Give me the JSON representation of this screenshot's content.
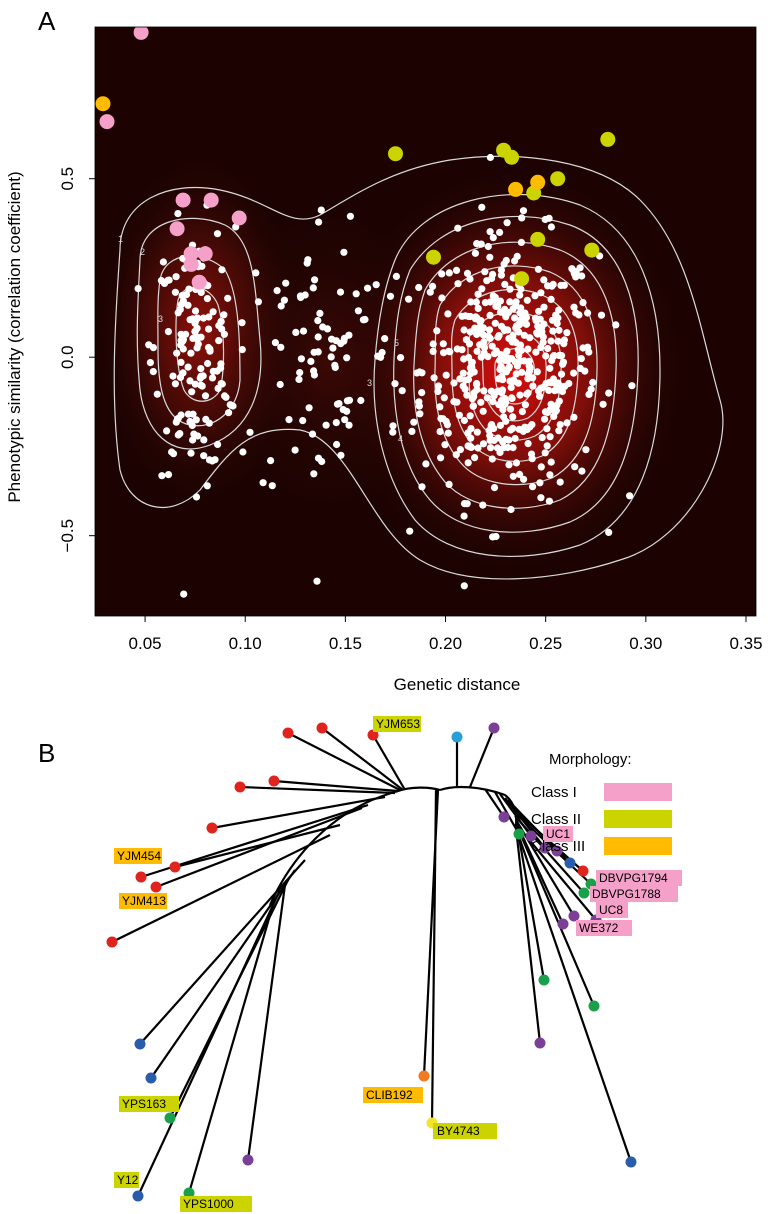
{
  "panels": {
    "a": "A",
    "b": "B"
  },
  "chart_data": [
    {
      "type": "scatter",
      "title": "",
      "xlabel": "Genetic distance",
      "ylabel": "Phenotypic similarity (correlation coefficient)",
      "xlim": [
        0.025,
        0.355
      ],
      "ylim": [
        -0.725,
        0.925
      ],
      "x_ticks": [
        0.05,
        0.1,
        0.15,
        0.2,
        0.25,
        0.3,
        0.35
      ],
      "x_tick_labels": [
        "0.05",
        "0.10",
        "0.15",
        "0.20",
        "0.25",
        "0.30",
        "0.35"
      ],
      "y_ticks": [
        -0.5,
        0.0,
        0.5
      ],
      "y_tick_labels": [
        "−0.5",
        "0.0",
        "0.5"
      ],
      "background": "2D density heatmap (dark to red) with white contour lines",
      "contour_labels": [
        "1",
        "2",
        "3",
        "3",
        "4",
        "5"
      ],
      "colors": {
        "points": "#ffffff",
        "class_I": "#f4a0c8",
        "class_II": "#ccd400",
        "class_III": "#ffbb00",
        "contours": "#d9d9d9"
      },
      "density_centers": [
        {
          "x": 0.232,
          "y": -0.03,
          "weight": 1.0
        },
        {
          "x": 0.075,
          "y": 0.05,
          "weight": 0.55
        },
        {
          "x": 0.14,
          "y": 0.0,
          "weight": 0.12
        }
      ],
      "series": [
        {
          "name": "Class I",
          "color": "#f4a0c8",
          "points": [
            [
              0.048,
              0.91
            ],
            [
              0.031,
              0.66
            ],
            [
              0.069,
              0.44
            ],
            [
              0.083,
              0.44
            ],
            [
              0.097,
              0.39
            ],
            [
              0.066,
              0.36
            ],
            [
              0.073,
              0.29
            ],
            [
              0.08,
              0.29
            ],
            [
              0.073,
              0.26
            ],
            [
              0.077,
              0.21
            ]
          ]
        },
        {
          "name": "Class II",
          "color": "#ccd400",
          "points": [
            [
              0.175,
              0.57
            ],
            [
              0.229,
              0.58
            ],
            [
              0.233,
              0.56
            ],
            [
              0.281,
              0.61
            ],
            [
              0.256,
              0.5
            ],
            [
              0.244,
              0.46
            ],
            [
              0.246,
              0.33
            ],
            [
              0.273,
              0.3
            ],
            [
              0.194,
              0.28
            ],
            [
              0.238,
              0.22
            ]
          ]
        },
        {
          "name": "Class III",
          "color": "#ffbb00",
          "points": [
            [
              0.029,
              0.71
            ],
            [
              0.235,
              0.47
            ],
            [
              0.246,
              0.49
            ]
          ]
        }
      ],
      "background_points_count": 700,
      "background_points_clusters": [
        {
          "x": 0.232,
          "y": -0.03,
          "sx": 0.022,
          "sy": 0.18,
          "n": 460
        },
        {
          "x": 0.075,
          "y": 0.02,
          "sx": 0.01,
          "sy": 0.17,
          "n": 150
        },
        {
          "x": 0.14,
          "y": 0.0,
          "sx": 0.022,
          "sy": 0.22,
          "n": 90
        }
      ]
    },
    {
      "type": "tree",
      "title": "",
      "description": "Unrooted phylogenetic tree of strains, leaf dots colored by lineage",
      "legend": {
        "title": "Morphology:",
        "entries": [
          {
            "label": "Class I",
            "color": "#f4a0c8"
          },
          {
            "label": "Class II",
            "color": "#ccd400"
          },
          {
            "label": "Class III",
            "color": "#ffbb00"
          }
        ]
      },
      "leaf_colors": {
        "red": "#e0231c",
        "blue": "#2a5cac",
        "purple": "#7b3f98",
        "green": "#1aa04a",
        "lightblue": "#2a9fd6",
        "orange": "#f07b22",
        "yellow": "#f2e52a"
      },
      "labels": [
        {
          "text": "YJM653",
          "class": "Class II"
        },
        {
          "text": "YJM454",
          "class": "Class III"
        },
        {
          "text": "YJM413",
          "class": "Class III"
        },
        {
          "text": "UC1",
          "class": "Class I"
        },
        {
          "text": "DBVPG1794",
          "class": "Class I"
        },
        {
          "text": "DBVPG1788",
          "class": "Class I"
        },
        {
          "text": "UC8",
          "class": "Class I"
        },
        {
          "text": "WE372",
          "class": "Class I"
        },
        {
          "text": "YPS163",
          "class": "Class II"
        },
        {
          "text": "CLIB192",
          "class": "Class III"
        },
        {
          "text": "BY4743",
          "class": "Class II"
        },
        {
          "text": "Y12",
          "class": "Class II"
        },
        {
          "text": "YPS1000",
          "class": "Class II"
        }
      ]
    }
  ]
}
